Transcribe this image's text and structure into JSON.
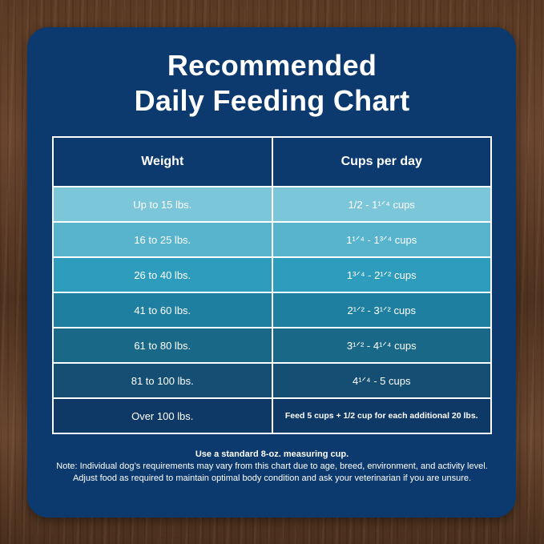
{
  "title": {
    "line1": "Recommended",
    "line2": "Daily Feeding Chart"
  },
  "table": {
    "headers": [
      "Weight",
      "Cups per day"
    ],
    "rows": [
      {
        "weight": "Up to 15 lbs.",
        "cups": "1/2 - 1¹ᐟ⁴ cups"
      },
      {
        "weight": "16 to 25 lbs.",
        "cups": "1¹ᐟ⁴ - 1³ᐟ⁴ cups"
      },
      {
        "weight": "26 to 40 lbs.",
        "cups": "1³ᐟ⁴ - 2¹ᐟ² cups"
      },
      {
        "weight": "41 to 60 lbs.",
        "cups": "2¹ᐟ² - 3¹ᐟ² cups"
      },
      {
        "weight": "61 to 80 lbs.",
        "cups": "3¹ᐟ² - 4¹ᐟ⁴ cups"
      },
      {
        "weight": "81 to 100 lbs.",
        "cups": "4¹ᐟ⁴ - 5 cups"
      },
      {
        "weight": "Over 100 lbs.",
        "cups": "Feed 5 cups + 1/2 cup for each additional 20 lbs."
      }
    ],
    "row_colors": [
      "#7cc6d9",
      "#58b4cd",
      "#2d9cbd",
      "#1f7fa0",
      "#1a6888",
      "#154e73",
      "#0e3866"
    ]
  },
  "notes": {
    "measure": "Use a standard 8-oz. measuring cup.",
    "disclaimer": "Note: Individual dog’s requirements may vary from this chart due to age, breed, environment, and activity level. Adjust food as required to maintain optimal body condition and ask your veterinarian if you are unsure."
  },
  "colors": {
    "card": "#0c3a6e",
    "text": "#ffffff"
  }
}
